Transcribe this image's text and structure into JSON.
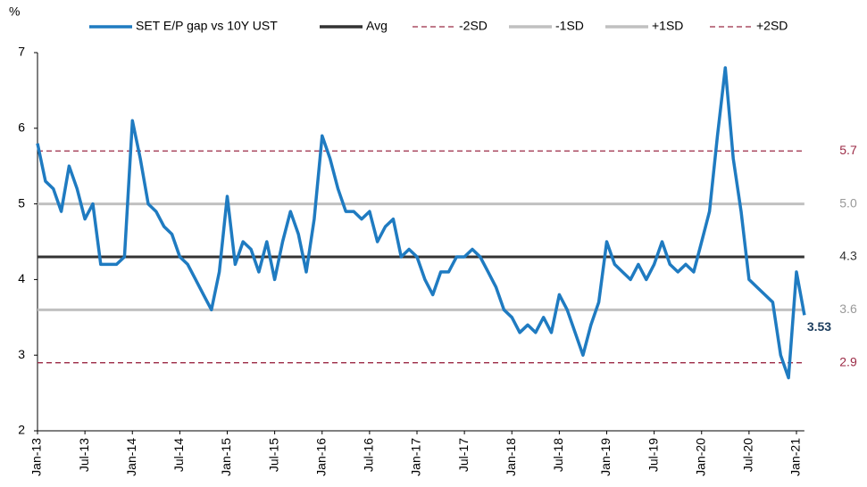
{
  "chart_data": {
    "type": "line",
    "y_label": "%",
    "categories": [
      "Jan-13",
      null,
      null,
      null,
      null,
      null,
      "Jul-13",
      null,
      null,
      null,
      null,
      null,
      "Jan-14",
      null,
      null,
      null,
      null,
      null,
      "Jul-14",
      null,
      null,
      null,
      null,
      null,
      "Jan-15",
      null,
      null,
      null,
      null,
      null,
      "Jul-15",
      null,
      null,
      null,
      null,
      null,
      "Jan-16",
      null,
      null,
      null,
      null,
      null,
      "Jul-16",
      null,
      null,
      null,
      null,
      null,
      "Jan-17",
      null,
      null,
      null,
      null,
      null,
      "Jul-17",
      null,
      null,
      null,
      null,
      null,
      "Jan-18",
      null,
      null,
      null,
      null,
      null,
      "Jul-18",
      null,
      null,
      null,
      null,
      null,
      "Jan-19",
      null,
      null,
      null,
      null,
      null,
      "Jul-19",
      null,
      null,
      null,
      null,
      null,
      "Jan-20",
      null,
      null,
      null,
      null,
      null,
      "Jul-20",
      null,
      null,
      null,
      null,
      null,
      "Jan-21",
      null
    ],
    "series": [
      {
        "name": "SET E/P gap vs 10Y UST",
        "color": "#1f7bc1",
        "values": [
          5.8,
          5.3,
          5.2,
          4.9,
          5.5,
          5.2,
          4.8,
          5.0,
          4.2,
          4.2,
          4.2,
          4.3,
          6.1,
          5.6,
          5.0,
          4.9,
          4.7,
          4.6,
          4.3,
          4.2,
          4.0,
          3.8,
          3.6,
          4.1,
          5.1,
          4.2,
          4.5,
          4.4,
          4.1,
          4.5,
          4.0,
          4.5,
          4.9,
          4.6,
          4.1,
          4.8,
          5.9,
          5.6,
          5.2,
          4.9,
          4.9,
          4.8,
          4.9,
          4.5,
          4.7,
          4.8,
          4.3,
          4.4,
          4.3,
          4.0,
          3.8,
          4.1,
          4.1,
          4.3,
          4.3,
          4.4,
          4.3,
          4.1,
          3.9,
          3.6,
          3.5,
          3.3,
          3.4,
          3.3,
          3.5,
          3.3,
          3.8,
          3.6,
          3.3,
          3.0,
          3.4,
          3.7,
          4.5,
          4.2,
          4.1,
          4.0,
          4.2,
          4.0,
          4.2,
          4.5,
          4.2,
          4.1,
          4.2,
          4.1,
          4.5,
          4.9,
          5.9,
          6.8,
          5.6,
          4.9,
          4.0,
          3.9,
          3.8,
          3.7,
          3.0,
          2.7,
          4.1,
          3.53
        ]
      }
    ],
    "reference_lines": [
      {
        "name": "Avg",
        "value": 4.3,
        "label": "4.3",
        "color": "#333333",
        "dashed": false
      },
      {
        "name": "-2SD",
        "value": 2.9,
        "label": "2.9",
        "color": "#9b2a45",
        "dashed": true
      },
      {
        "name": "-1SD",
        "value": 3.6,
        "label": "3.6",
        "color": "#c0c0c0",
        "dashed": false
      },
      {
        "name": "+1SD",
        "value": 5.0,
        "label": "5.0",
        "color": "#c0c0c0",
        "dashed": false
      },
      {
        "name": "+2SD",
        "value": 5.7,
        "label": "5.7",
        "color": "#9b2a45",
        "dashed": true
      }
    ],
    "ylim": [
      2,
      7
    ],
    "yticks": [
      2,
      3,
      4,
      5,
      6,
      7
    ]
  }
}
